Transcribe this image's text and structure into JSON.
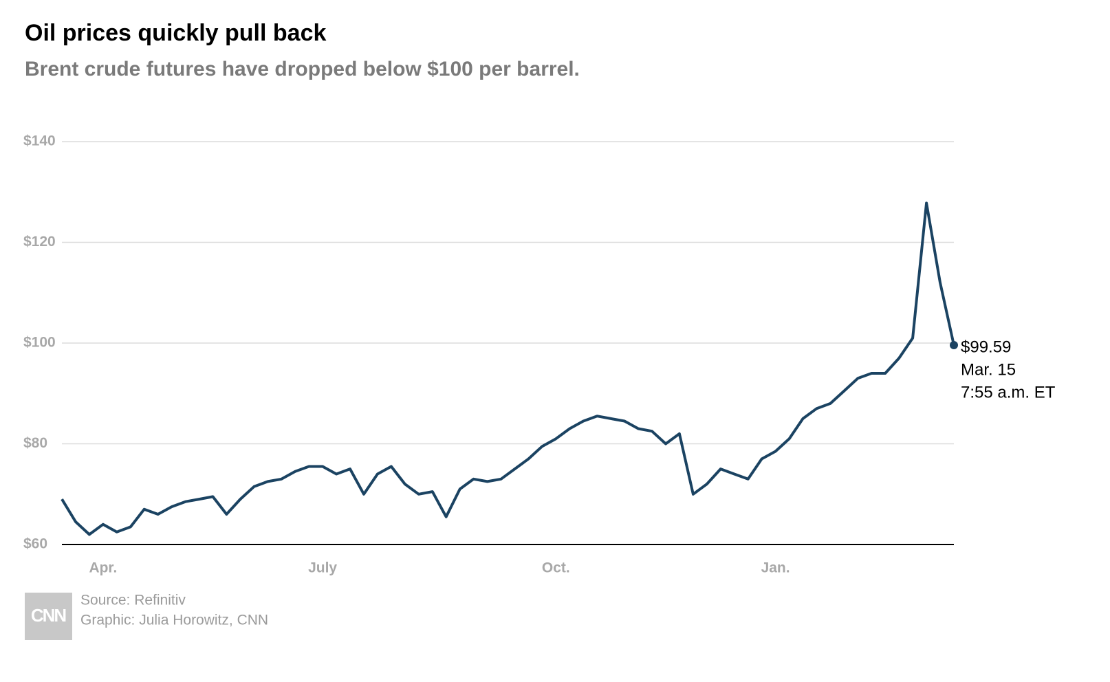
{
  "chart_data": {
    "type": "line",
    "title": "Oil prices quickly pull back",
    "subtitle": "Brent crude futures have dropped below $100 per barrel.",
    "categories": [
      null,
      null,
      null,
      "Apr.",
      null,
      null,
      null,
      null,
      null,
      null,
      null,
      null,
      null,
      null,
      null,
      null,
      null,
      null,
      null,
      "July",
      null,
      null,
      null,
      null,
      null,
      null,
      null,
      null,
      null,
      null,
      null,
      null,
      null,
      null,
      null,
      null,
      "Oct.",
      null,
      null,
      null,
      null,
      null,
      null,
      null,
      null,
      null,
      null,
      null,
      null,
      null,
      null,
      null,
      "Jan.",
      null,
      null,
      null,
      null,
      null,
      null,
      null,
      null,
      null,
      null,
      null,
      null,
      null
    ],
    "values": [
      69,
      64.5,
      62,
      64,
      62.5,
      63.5,
      67,
      66,
      67.5,
      68.5,
      69,
      69.5,
      66,
      69,
      71.5,
      72.5,
      73,
      74.5,
      75.5,
      75.5,
      74,
      75,
      70,
      74,
      75.5,
      72,
      70,
      70.5,
      65.5,
      71,
      73,
      72.5,
      73,
      75,
      77,
      79.5,
      81,
      83,
      84.5,
      85.5,
      85,
      84.5,
      83,
      82.5,
      80,
      82,
      70,
      72,
      75,
      74,
      73,
      77,
      78.5,
      81,
      85,
      87,
      88,
      90.5,
      93,
      94,
      94,
      97,
      101,
      127.8,
      112,
      99.59
    ],
    "color": "#1b4362",
    "ylim": [
      60,
      140
    ],
    "yticks": [
      {
        "value": 60,
        "label": "$60"
      },
      {
        "value": 80,
        "label": "$80"
      },
      {
        "value": 100,
        "label": "$100"
      },
      {
        "value": 120,
        "label": "$120"
      },
      {
        "value": 140,
        "label": "$140"
      }
    ],
    "grid": true,
    "annotations": [
      "$99.59",
      "Mar. 15",
      "7:55 a.m. ET"
    ],
    "source": "Source: Refinitiv",
    "credit": "Graphic: Julia Horowitz, CNN",
    "logo": "CNN"
  }
}
